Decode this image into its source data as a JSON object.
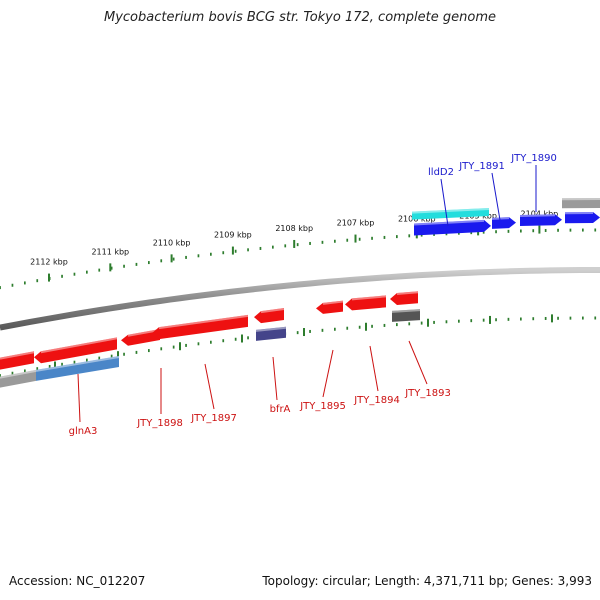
{
  "title": "Mycobacterium bovis BCG str. Tokyo 172, complete genome",
  "footer": {
    "accession": "Accession: NC_012207",
    "summary": "Topology: circular; Length: 4,371,711 bp; Genes: 3,993"
  },
  "colors": {
    "backbone": "#8a8a8a",
    "tick": "#2e7d2e",
    "forward_gene": "#1a1aee",
    "forward_label": "#1a1acc",
    "reverse_gene": "#ee1111",
    "reverse_label": "#cc1111",
    "cyan_feature": "#22dddd",
    "steel_feature": "#4a86c8",
    "navy_feature": "#44448a",
    "grey_feature": "#9a9a9a",
    "dark_feature": "#555555"
  },
  "ruler_ticks": [
    {
      "label": "2112 kbp",
      "kbp": 2112
    },
    {
      "label": "2111 kbp",
      "kbp": 2111
    },
    {
      "label": "2110 kbp",
      "kbp": 2110
    },
    {
      "label": "2109 kbp",
      "kbp": 2109
    },
    {
      "label": "2108 kbp",
      "kbp": 2108
    },
    {
      "label": "2107 kbp",
      "kbp": 2107
    },
    {
      "label": "2106 kbp",
      "kbp": 2106
    },
    {
      "label": "2105 kbp",
      "kbp": 2105
    },
    {
      "label": "2104 kbp",
      "kbp": 2104
    }
  ],
  "forward_labels": [
    "lldD2",
    "JTY_1891",
    "JTY_1890"
  ],
  "reverse_labels": [
    "glnA3",
    "JTY_1898",
    "JTY_1897",
    "bfrA",
    "JTY_1895",
    "JTY_1894",
    "JTY_1893"
  ]
}
